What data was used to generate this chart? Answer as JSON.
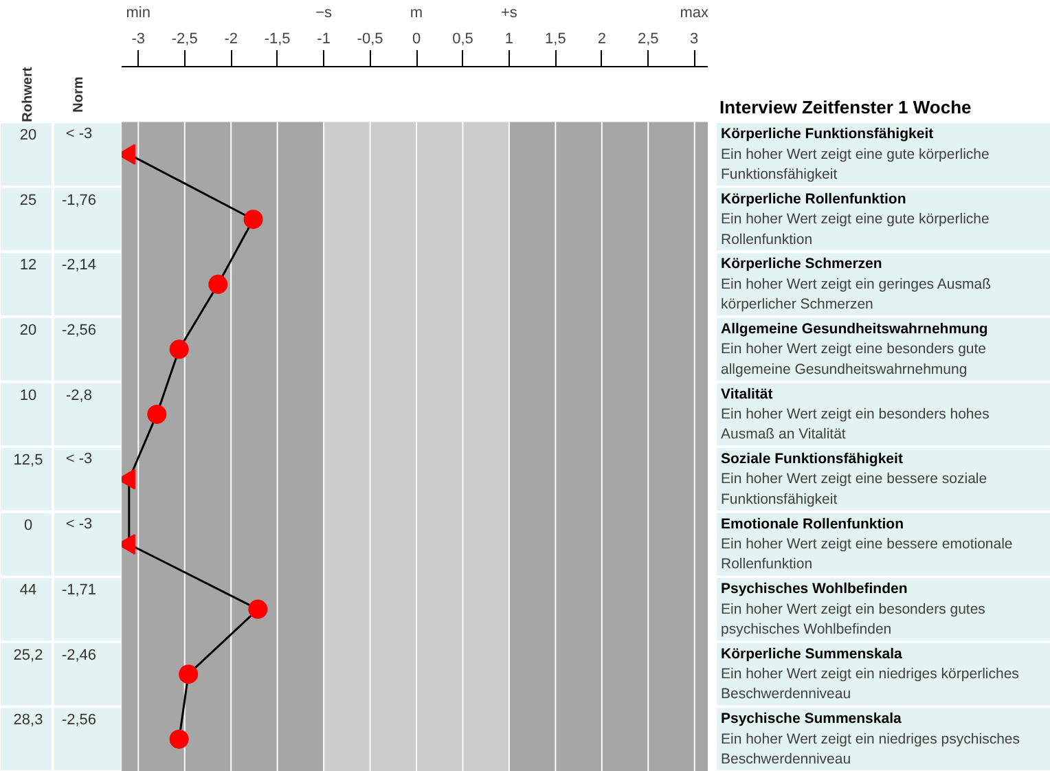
{
  "chart_data": {
    "type": "line",
    "orientation": "horizontal",
    "title": "Interview Zeitfenster 1 Woche",
    "categories": [
      "Körperliche Funktionsfähigkeit",
      "Körperliche Rollenfunktion",
      "Körperliche Schmerzen",
      "Allgemeine Gesundheitswahrnehmung",
      "Vitalität",
      "Soziale Funktionsfähigkeit",
      "Emotionale Rollenfunktion",
      "Psychisches Wohlbefinden",
      "Körperliche Summenskala",
      "Psychische Summenskala"
    ],
    "xlim": [
      -3.18,
      3.15
    ],
    "xticks": [
      {
        "value": -3,
        "label": "min\n-3"
      },
      {
        "value": -2.5,
        "label": "-2,5"
      },
      {
        "value": -2,
        "label": "-2"
      },
      {
        "value": -1.5,
        "label": "-1,5"
      },
      {
        "value": -1,
        "label": "−s\n-1"
      },
      {
        "value": -0.5,
        "label": "-0,5"
      },
      {
        "value": 0,
        "label": "m\n0"
      },
      {
        "value": 0.5,
        "label": "0,5"
      },
      {
        "value": 1,
        "label": "+s\n1"
      },
      {
        "value": 1.5,
        "label": "1,5"
      },
      {
        "value": 2,
        "label": "2"
      },
      {
        "value": 2.5,
        "label": "2,5"
      },
      {
        "value": 3,
        "label": "max\n3"
      }
    ],
    "grid": "x",
    "bands": [
      {
        "axis": "x",
        "from": -3.18,
        "to": -1,
        "color": "#a6a6a6"
      },
      {
        "axis": "x",
        "from": -1,
        "to": 1,
        "color": "#cccccc"
      },
      {
        "axis": "x",
        "from": 1,
        "to": 3.15,
        "color": "#a6a6a6"
      }
    ],
    "series": [
      {
        "color": "#000000",
        "marker": "none",
        "values": [
          -3.1,
          -1.76,
          -2.14,
          -2.56,
          -2.8,
          -3.1,
          -3.1,
          -1.71,
          -2.46,
          -2.56
        ],
        "value_labels": [
          "< -3",
          "-1,76",
          "-2,14",
          "-2,56",
          "-2,8",
          "< -3",
          "< -3",
          "-1,71",
          "-2,46",
          "-2,56"
        ]
      },
      {
        "type": "scatter",
        "color": "#ff0000",
        "marker": "circle",
        "values": [
          null,
          -1.76,
          -2.14,
          -2.56,
          -2.8,
          null,
          null,
          -1.71,
          -2.46,
          -2.56
        ]
      },
      {
        "type": "scatter",
        "color": "#ff0000",
        "marker": "triangle",
        "values": [
          -3.1,
          null,
          null,
          null,
          null,
          -3.1,
          -3.1,
          null,
          null,
          null
        ]
      }
    ],
    "annotations": [
      "Rohwert",
      "Norm",
      "20",
      "25",
      "12",
      "20",
      "10",
      "12,5",
      "0",
      "44",
      "25,2",
      "28,3",
      "Ein hoher Wert zeigt eine gute körperliche\nFunktionsfähigkeit",
      "Ein hoher Wert zeigt eine gute körperliche\nRollenfunktion",
      "Ein hoher Wert zeigt ein geringes Ausmaß\nkörperlicher Schmerzen",
      "Ein hoher Wert zeigt eine besonders gute\nallgemeine Gesundheitswahrnehmung",
      "Ein hoher Wert zeigt ein besonders hohes\nAusmaß an Vitalität",
      "Ein hoher Wert zeigt eine bessere soziale\nFunktionsfähigkeit",
      "Ein hoher Wert zeigt eine bessere emotionale\nRollenfunktion",
      "Ein hoher Wert zeigt ein besonders gutes\npsychisches Wohlbefinden",
      "Ein hoher Wert zeigt ein niedriges körperliches\nBeschwerdenniveau",
      "Ein hoher Wert zeigt ein niedriges psychisches\nBeschwerdenniveau"
    ]
  }
}
